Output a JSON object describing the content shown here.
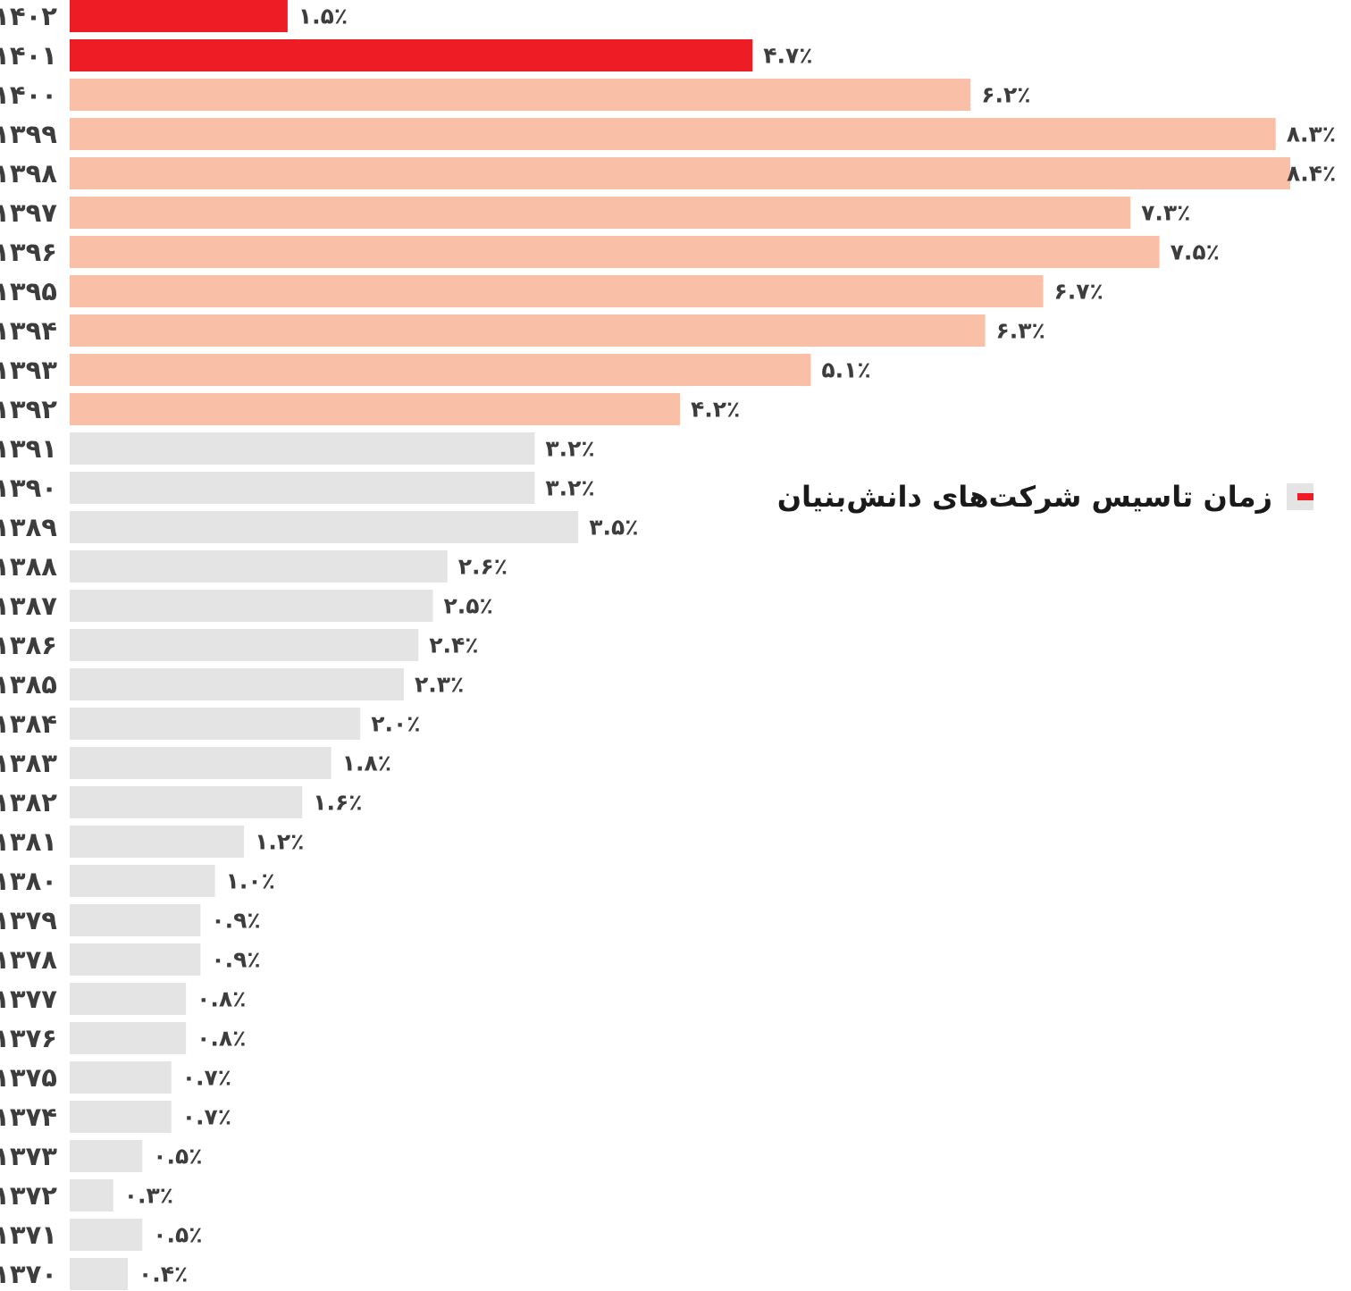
{
  "legend": {
    "label": "زمان تاسیس شرکت‌های دانش‌بنیان"
  },
  "colors": {
    "recent": "#ee1c25",
    "mid": "#fabfa7",
    "old": "#e4e4e4",
    "text": "#3d3d3d"
  },
  "chart_data": {
    "type": "bar",
    "orientation": "horizontal",
    "title": "",
    "xlabel": "",
    "ylabel": "",
    "xlim": [
      0,
      8.4
    ],
    "grid": false,
    "legend_position": "right",
    "series": [
      {
        "name": "زمان تاسیس شرکت‌های دانش‌بنیان",
        "points": [
          {
            "category": "۱۴۰۲",
            "value": 1.5,
            "label": "۱.۵٪",
            "group": "recent"
          },
          {
            "category": "۱۴۰۱",
            "value": 4.7,
            "label": "۴.۷٪",
            "group": "recent"
          },
          {
            "category": "۱۴۰۰",
            "value": 6.2,
            "label": "۶.۲٪",
            "group": "mid"
          },
          {
            "category": "۱۳۹۹",
            "value": 8.3,
            "label": "۸.۳٪",
            "group": "mid"
          },
          {
            "category": "۱۳۹۸",
            "value": 8.4,
            "label": "۸.۴٪",
            "group": "mid"
          },
          {
            "category": "۱۳۹۷",
            "value": 7.3,
            "label": "۷.۳٪",
            "group": "mid"
          },
          {
            "category": "۱۳۹۶",
            "value": 7.5,
            "label": "۷.۵٪",
            "group": "mid"
          },
          {
            "category": "۱۳۹۵",
            "value": 6.7,
            "label": "۶.۷٪",
            "group": "mid"
          },
          {
            "category": "۱۳۹۴",
            "value": 6.3,
            "label": "۶.۳٪",
            "group": "mid"
          },
          {
            "category": "۱۳۹۳",
            "value": 5.1,
            "label": "۵.۱٪",
            "group": "mid"
          },
          {
            "category": "۱۳۹۲",
            "value": 4.2,
            "label": "۴.۲٪",
            "group": "mid"
          },
          {
            "category": "۱۳۹۱",
            "value": 3.2,
            "label": "۳.۲٪",
            "group": "old"
          },
          {
            "category": "۱۳۹۰",
            "value": 3.2,
            "label": "۳.۲٪",
            "group": "old"
          },
          {
            "category": "۱۳۸۹",
            "value": 3.5,
            "label": "۳.۵٪",
            "group": "old"
          },
          {
            "category": "۱۳۸۸",
            "value": 2.6,
            "label": "۲.۶٪",
            "group": "old"
          },
          {
            "category": "۱۳۸۷",
            "value": 2.5,
            "label": "۲.۵٪",
            "group": "old"
          },
          {
            "category": "۱۳۸۶",
            "value": 2.4,
            "label": "۲.۴٪",
            "group": "old"
          },
          {
            "category": "۱۳۸۵",
            "value": 2.3,
            "label": "۲.۳٪",
            "group": "old"
          },
          {
            "category": "۱۳۸۴",
            "value": 2.0,
            "label": "۲.۰٪",
            "group": "old"
          },
          {
            "category": "۱۳۸۳",
            "value": 1.8,
            "label": "۱.۸٪",
            "group": "old"
          },
          {
            "category": "۱۳۸۲",
            "value": 1.6,
            "label": "۱.۶٪",
            "group": "old"
          },
          {
            "category": "۱۳۸۱",
            "value": 1.2,
            "label": "۱.۲٪",
            "group": "old"
          },
          {
            "category": "۱۳۸۰",
            "value": 1.0,
            "label": "۱.۰٪",
            "group": "old"
          },
          {
            "category": "۱۳۷۹",
            "value": 0.9,
            "label": "۰.۹٪",
            "group": "old"
          },
          {
            "category": "۱۳۷۸",
            "value": 0.9,
            "label": "۰.۹٪",
            "group": "old"
          },
          {
            "category": "۱۳۷۷",
            "value": 0.8,
            "label": "۰.۸٪",
            "group": "old"
          },
          {
            "category": "۱۳۷۶",
            "value": 0.8,
            "label": "۰.۸٪",
            "group": "old"
          },
          {
            "category": "۱۳۷۵",
            "value": 0.7,
            "label": "۰.۷٪",
            "group": "old"
          },
          {
            "category": "۱۳۷۴",
            "value": 0.7,
            "label": "۰.۷٪",
            "group": "old"
          },
          {
            "category": "۱۳۷۳",
            "value": 0.5,
            "label": "۰.۵٪",
            "group": "old"
          },
          {
            "category": "۱۳۷۲",
            "value": 0.3,
            "label": "۰.۳٪",
            "group": "old"
          },
          {
            "category": "۱۳۷۱",
            "value": 0.5,
            "label": "۰.۵٪",
            "group": "old"
          },
          {
            "category": "۱۳۷۰",
            "value": 0.4,
            "label": "۰.۴٪",
            "group": "old"
          }
        ]
      }
    ]
  }
}
